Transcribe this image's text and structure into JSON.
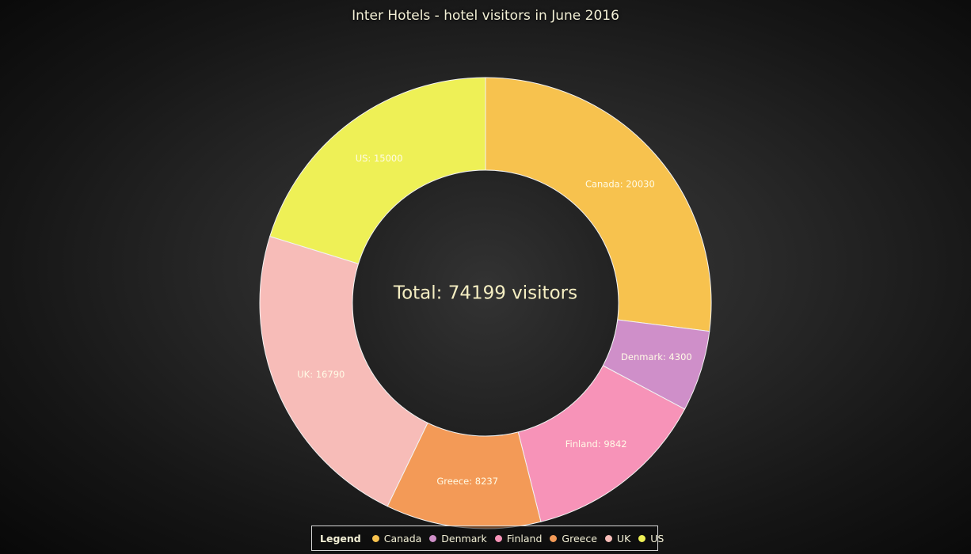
{
  "chart_data": {
    "type": "pie",
    "variant": "donut",
    "title": "Inter Hotels - hotel visitors in June 2016",
    "center_label": "Total: 74199 visitors",
    "legend_title": "Legend",
    "legend_position": "bottom-center",
    "slices": [
      {
        "name": "Canada",
        "value": 20030,
        "label": "Canada: 20030",
        "color": "#f7c24e"
      },
      {
        "name": "Denmark",
        "value": 4300,
        "label": "Denmark: 4300",
        "color": "#cf8fc9"
      },
      {
        "name": "Finland",
        "value": 9842,
        "label": "Finland: 9842",
        "color": "#f793b8"
      },
      {
        "name": "Greece",
        "value": 8237,
        "label": "Greece: 8237",
        "color": "#f39a57"
      },
      {
        "name": "UK",
        "value": 16790,
        "label": "UK: 16790",
        "color": "#f7bcb8"
      },
      {
        "name": "US",
        "value": 15000,
        "label": "US: 15000",
        "color": "#eef056"
      }
    ]
  }
}
